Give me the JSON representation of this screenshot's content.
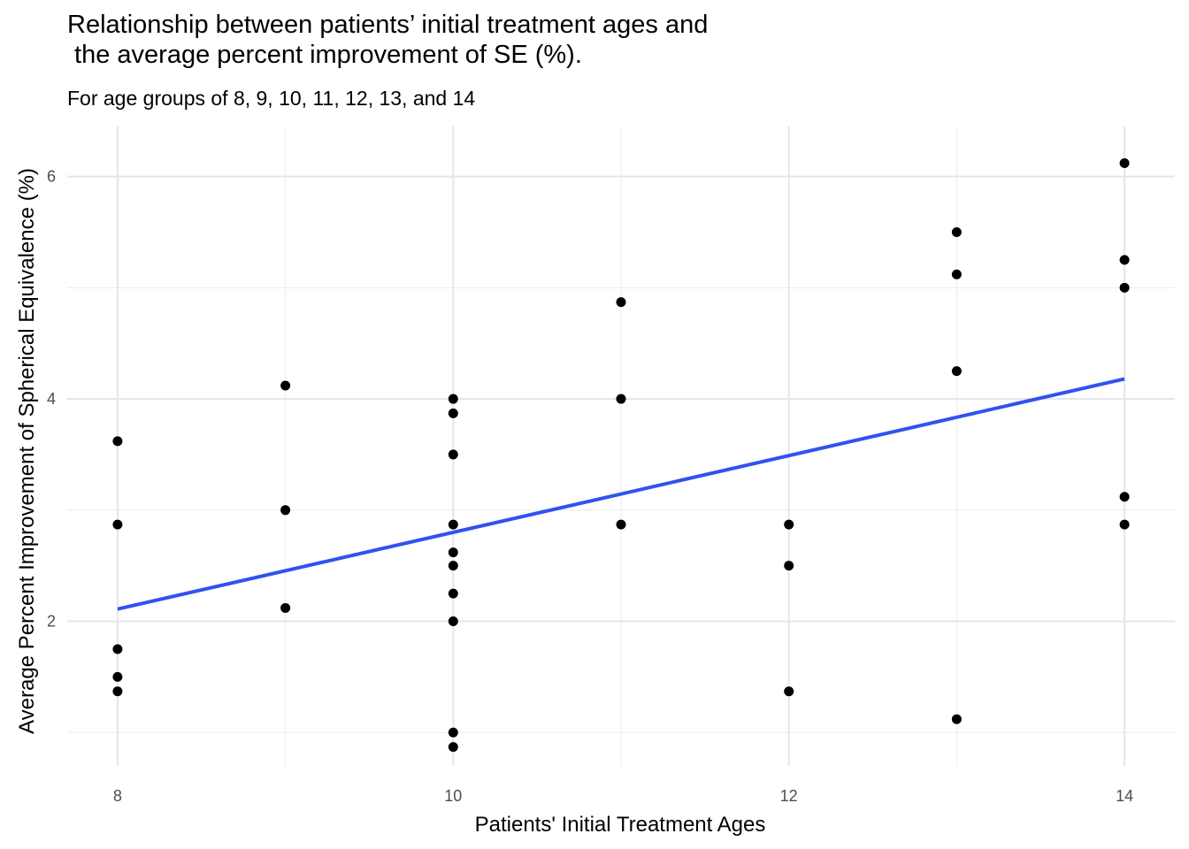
{
  "chart_data": {
    "type": "scatter",
    "title_lines": [
      "Relationship between patients’ initial treatment ages and",
      " the average percent improvement of SE (%)."
    ],
    "subtitle": "For age groups of 8, 9, 10, 11, 12, 13, and 14",
    "xlabel": "Patients' Initial Treatment Ages",
    "ylabel": "Average Percent Improvement of Spherical Equivalence (%)",
    "xlim": [
      7.7,
      14.3
    ],
    "ylim": [
      0.7,
      6.45
    ],
    "x_ticks": [
      8,
      10,
      12,
      14
    ],
    "y_ticks": [
      2,
      4,
      6
    ],
    "x_minor": [
      9,
      11,
      13
    ],
    "y_minor": [
      1,
      3,
      5
    ],
    "grid": true,
    "point_color": "#000000",
    "trend_color": "#3152f0",
    "trendline": {
      "x": [
        8,
        14
      ],
      "y": [
        2.11,
        4.18
      ]
    },
    "points": [
      {
        "x": 8,
        "y": 3.62
      },
      {
        "x": 8,
        "y": 2.87
      },
      {
        "x": 8,
        "y": 1.75
      },
      {
        "x": 8,
        "y": 1.5
      },
      {
        "x": 8,
        "y": 1.37
      },
      {
        "x": 9,
        "y": 4.12
      },
      {
        "x": 9,
        "y": 3.0
      },
      {
        "x": 9,
        "y": 2.12
      },
      {
        "x": 10,
        "y": 4.0
      },
      {
        "x": 10,
        "y": 3.87
      },
      {
        "x": 10,
        "y": 3.5
      },
      {
        "x": 10,
        "y": 2.87
      },
      {
        "x": 10,
        "y": 2.62
      },
      {
        "x": 10,
        "y": 2.5
      },
      {
        "x": 10,
        "y": 2.25
      },
      {
        "x": 10,
        "y": 2.0
      },
      {
        "x": 10,
        "y": 1.0
      },
      {
        "x": 10,
        "y": 0.87
      },
      {
        "x": 11,
        "y": 4.87
      },
      {
        "x": 11,
        "y": 4.0
      },
      {
        "x": 11,
        "y": 2.87
      },
      {
        "x": 12,
        "y": 2.87
      },
      {
        "x": 12,
        "y": 2.5
      },
      {
        "x": 12,
        "y": 1.37
      },
      {
        "x": 13,
        "y": 5.5
      },
      {
        "x": 13,
        "y": 5.12
      },
      {
        "x": 13,
        "y": 4.25
      },
      {
        "x": 13,
        "y": 1.12
      },
      {
        "x": 14,
        "y": 6.12
      },
      {
        "x": 14,
        "y": 5.25
      },
      {
        "x": 14,
        "y": 5.0
      },
      {
        "x": 14,
        "y": 3.12
      },
      {
        "x": 14,
        "y": 2.87
      }
    ]
  }
}
